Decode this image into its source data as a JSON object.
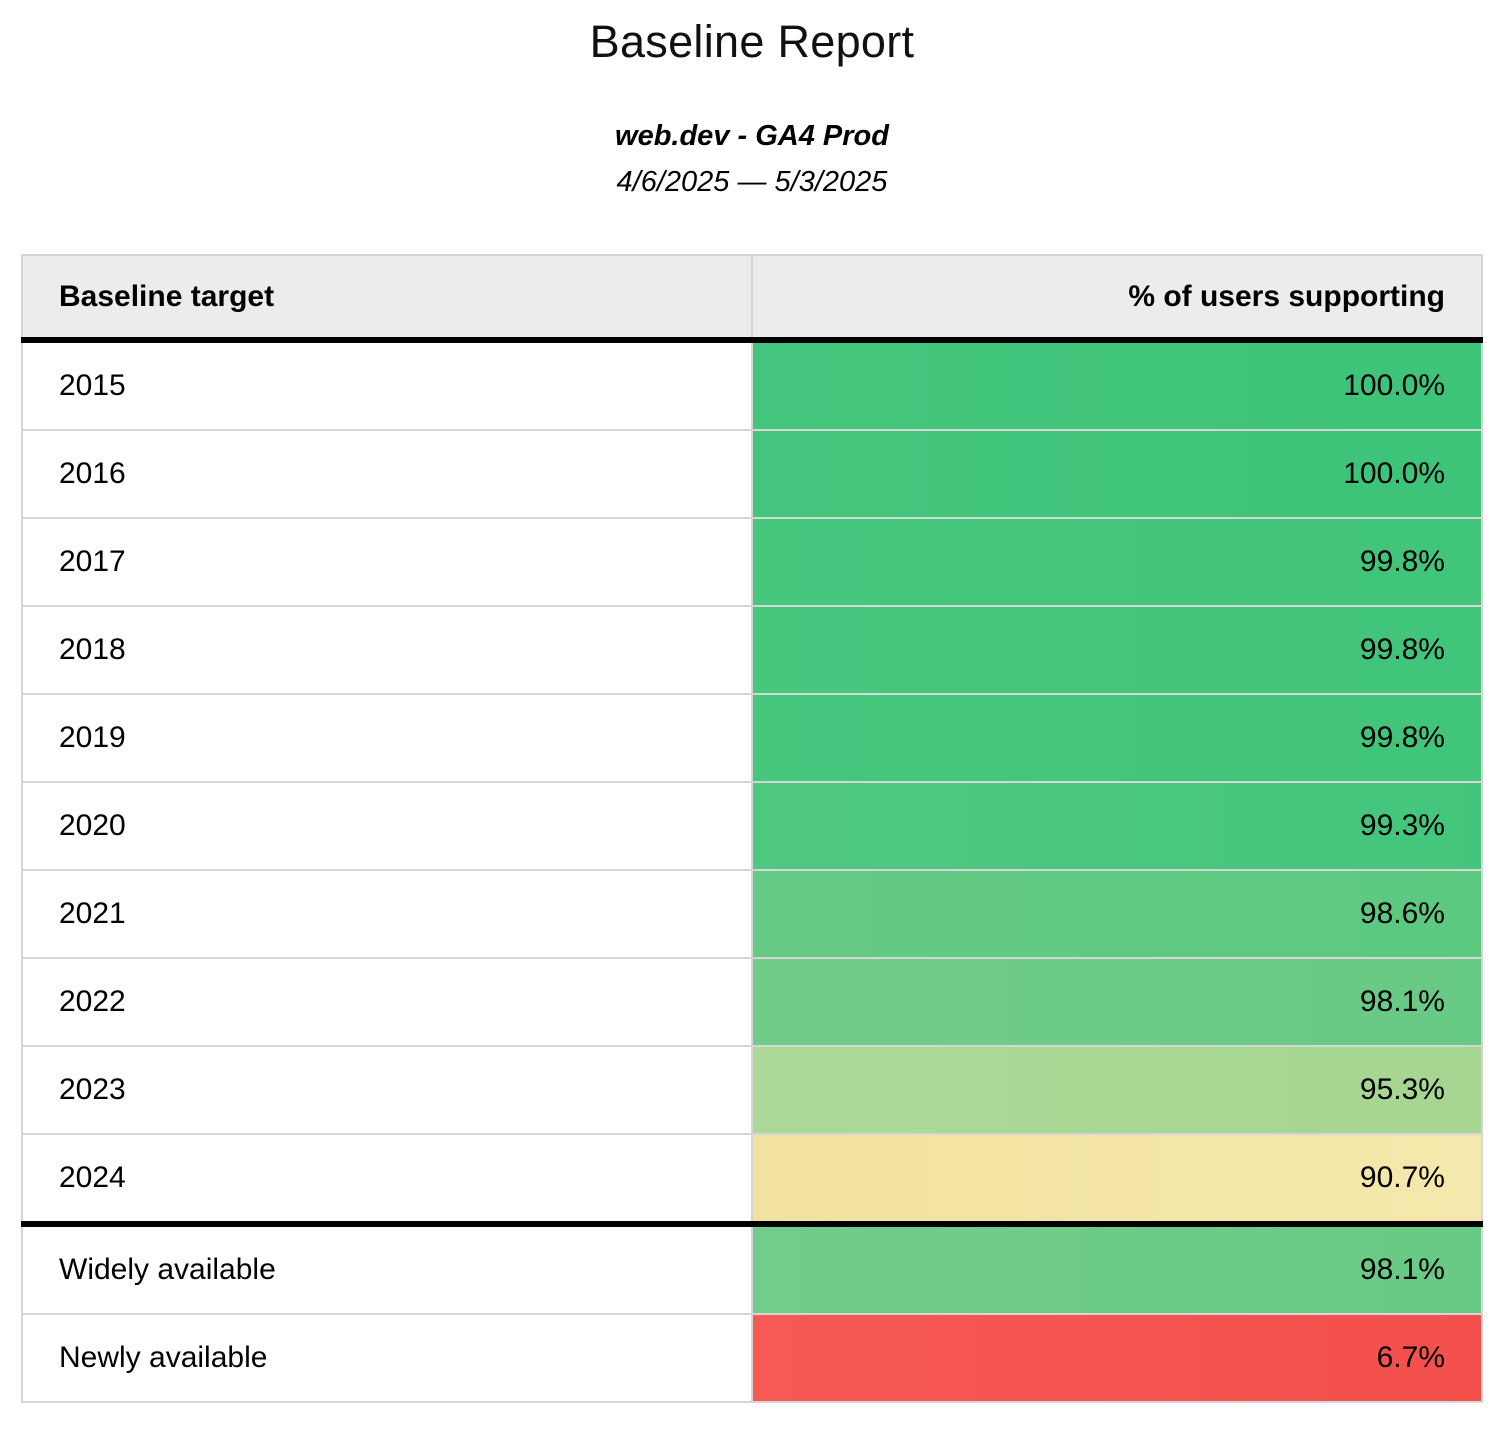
{
  "report": {
    "title": "Baseline Report",
    "source": "web.dev - GA4 Prod",
    "date_range": "4/6/2025 — 5/3/2025"
  },
  "table": {
    "columns": [
      "Baseline target",
      "% of users supporting"
    ],
    "rows": [
      {
        "label": "2015",
        "value": "100.0%",
        "color_left": "#45c67e",
        "color_right": "#3dc478"
      },
      {
        "label": "2016",
        "value": "100.0%",
        "color_left": "#45c67e",
        "color_right": "#3dc478"
      },
      {
        "label": "2017",
        "value": "99.8%",
        "color_left": "#47c67e",
        "color_right": "#40c57a"
      },
      {
        "label": "2018",
        "value": "99.8%",
        "color_left": "#47c67e",
        "color_right": "#40c57a"
      },
      {
        "label": "2019",
        "value": "99.8%",
        "color_left": "#47c67e",
        "color_right": "#40c57a"
      },
      {
        "label": "2020",
        "value": "99.3%",
        "color_left": "#4fc881",
        "color_right": "#43c67b"
      },
      {
        "label": "2021",
        "value": "98.6%",
        "color_left": "#65ca86",
        "color_right": "#5bc980"
      },
      {
        "label": "2022",
        "value": "98.1%",
        "color_left": "#71cc8a",
        "color_right": "#67ca84"
      },
      {
        "label": "2023",
        "value": "95.3%",
        "color_left": "#abd897",
        "color_right": "#a6d691"
      },
      {
        "label": "2024",
        "value": "90.7%",
        "color_left": "#f2e2a0",
        "color_right": "#f5e8ac"
      },
      {
        "label": "Widely available",
        "value": "98.1%",
        "color_left": "#72cc8b",
        "color_right": "#68ca85"
      },
      {
        "label": "Newly available",
        "value": "6.7%",
        "color_left": "#f65a55",
        "color_right": "#f44f4b"
      }
    ]
  },
  "colors": {
    "header_bg": "#ececec",
    "row_border": "#d6d6d6",
    "section_border": "#000000",
    "green_full": "#3dc478",
    "green_mid": "#6bcb86",
    "green_light": "#a8d794",
    "yellow": "#f3e4a2",
    "red": "#f5534f"
  },
  "chart_data": {
    "type": "table",
    "title": "Baseline Report",
    "subtitle": "web.dev - GA4 Prod",
    "date_range": "4/6/2025 — 5/3/2025",
    "columns": [
      "Baseline target",
      "% of users supporting"
    ],
    "categories": [
      "2015",
      "2016",
      "2017",
      "2018",
      "2019",
      "2020",
      "2021",
      "2022",
      "2023",
      "2024",
      "Widely available",
      "Newly available"
    ],
    "values": [
      100.0,
      100.0,
      99.8,
      99.8,
      99.8,
      99.3,
      98.6,
      98.1,
      95.3,
      90.7,
      98.1,
      6.7
    ],
    "value_unit": "%",
    "layout_hints": "percent cells color-scaled green (high) to yellow to red (low); thick rule separates year rows from availability summary rows"
  }
}
